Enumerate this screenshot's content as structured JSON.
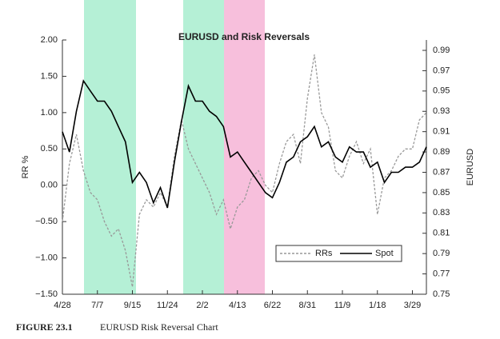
{
  "chart_data": {
    "type": "line",
    "title": "EURUSD and Risk Reversals",
    "figure_label": "FIGURE 23.1",
    "caption": "EURUSD Risk Reversal Chart",
    "ylabel": "RR %",
    "y2label": "EURUSD",
    "categories": [
      "4/28",
      null,
      null,
      null,
      null,
      "7/7",
      null,
      null,
      null,
      null,
      "9/15",
      null,
      null,
      null,
      null,
      "11/24",
      null,
      null,
      null,
      null,
      "2/2",
      null,
      null,
      null,
      null,
      "4/13",
      null,
      null,
      null,
      null,
      "6/22",
      null,
      null,
      null,
      null,
      "8/31",
      null,
      null,
      null,
      null,
      "11/9",
      null,
      null,
      null,
      null,
      "1/18",
      null,
      null,
      null,
      null,
      "3/29",
      null,
      null
    ],
    "series": [
      {
        "name": "RRs",
        "color": "#999999",
        "style": "dashed",
        "axis": "y",
        "values": [
          -0.5,
          0.3,
          0.7,
          0.2,
          -0.1,
          -0.2,
          -0.5,
          -0.7,
          -0.6,
          -0.9,
          -1.4,
          -0.4,
          -0.2,
          -0.3,
          -0.1,
          -0.3,
          0.4,
          0.9,
          0.5,
          0.3,
          0.1,
          -0.1,
          -0.4,
          -0.2,
          -0.6,
          -0.3,
          -0.2,
          0.1,
          0.2,
          0.0,
          -0.1,
          0.3,
          0.6,
          0.7,
          0.3,
          1.2,
          1.8,
          1.0,
          0.8,
          0.2,
          0.1,
          0.4,
          0.6,
          0.3,
          0.5,
          -0.4,
          0.1,
          0.2,
          0.4,
          0.5,
          0.5,
          0.9,
          1.0
        ]
      },
      {
        "name": "Spot",
        "color": "#000000",
        "style": "solid",
        "axis": "y2",
        "values": [
          0.91,
          0.89,
          0.93,
          0.96,
          0.95,
          0.94,
          0.94,
          0.93,
          0.915,
          0.9,
          0.86,
          0.87,
          0.86,
          0.84,
          0.855,
          0.835,
          0.88,
          0.92,
          0.955,
          0.94,
          0.94,
          0.93,
          0.925,
          0.915,
          0.885,
          0.89,
          0.88,
          0.87,
          0.86,
          0.85,
          0.845,
          0.86,
          0.88,
          0.885,
          0.9,
          0.905,
          0.915,
          0.895,
          0.9,
          0.885,
          0.88,
          0.895,
          0.89,
          0.89,
          0.875,
          0.88,
          0.86,
          0.87,
          0.87,
          0.875,
          0.875,
          0.88,
          0.895
        ]
      }
    ],
    "ylim": [
      -1.5,
      2.0
    ],
    "yticks": [
      {
        "value": -1.5,
        "label": "−1.50"
      },
      {
        "value": -1.0,
        "label": "−1.00"
      },
      {
        "value": -0.5,
        "label": "−0.50"
      },
      {
        "value": 0,
        "label": "0.00"
      },
      {
        "value": 0.5,
        "label": "0.50"
      },
      {
        "value": 1.0,
        "label": "1.00"
      },
      {
        "value": 1.5,
        "label": "1.50"
      },
      {
        "value": 2.0,
        "label": "2.00"
      }
    ],
    "y2lim": [
      0.75,
      0.99
    ],
    "y2ticks": [
      0.75,
      0.77,
      0.79,
      0.81,
      0.83,
      0.85,
      0.87,
      0.89,
      0.91,
      0.93,
      0.95,
      0.97,
      0.99
    ]
  }
}
